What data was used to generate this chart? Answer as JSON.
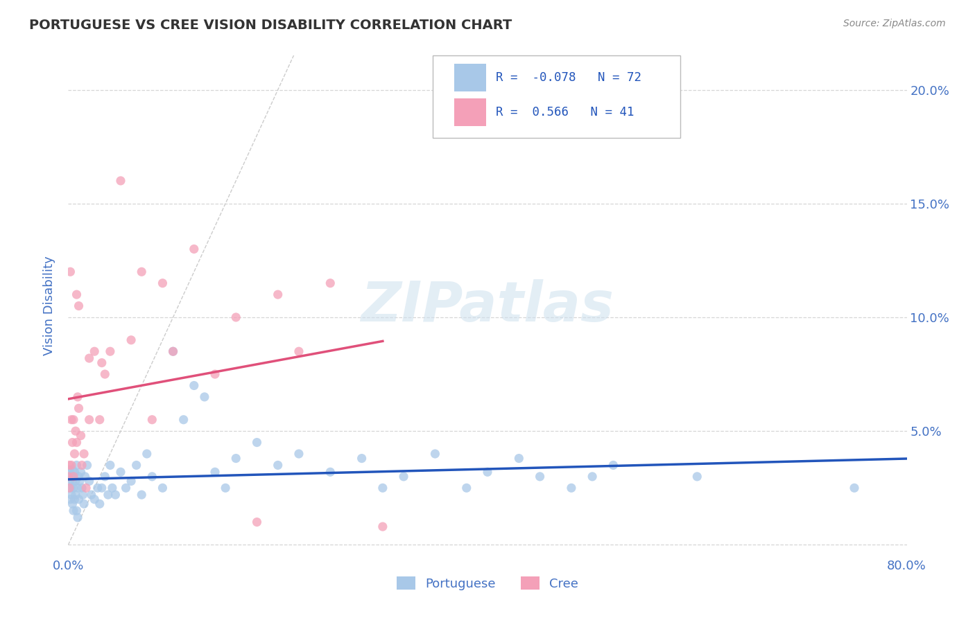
{
  "title": "PORTUGUESE VS CREE VISION DISABILITY CORRELATION CHART",
  "source": "Source: ZipAtlas.com",
  "ylabel": "Vision Disability",
  "watermark": "ZIPatlas",
  "xlim": [
    0.0,
    0.8
  ],
  "ylim": [
    -0.005,
    0.215
  ],
  "portuguese_color": "#a8c8e8",
  "cree_color": "#f4a0b8",
  "portuguese_line_color": "#2255bb",
  "cree_line_color": "#e0507a",
  "r_portuguese": -0.078,
  "n_portuguese": 72,
  "r_cree": 0.566,
  "n_cree": 41,
  "portuguese_x": [
    0.001,
    0.001,
    0.002,
    0.002,
    0.003,
    0.003,
    0.004,
    0.004,
    0.004,
    0.005,
    0.005,
    0.005,
    0.006,
    0.006,
    0.007,
    0.007,
    0.008,
    0.008,
    0.009,
    0.009,
    0.01,
    0.01,
    0.011,
    0.012,
    0.013,
    0.014,
    0.015,
    0.016,
    0.018,
    0.02,
    0.022,
    0.025,
    0.028,
    0.03,
    0.032,
    0.035,
    0.038,
    0.04,
    0.042,
    0.045,
    0.05,
    0.055,
    0.06,
    0.065,
    0.07,
    0.075,
    0.08,
    0.09,
    0.1,
    0.11,
    0.12,
    0.13,
    0.14,
    0.15,
    0.16,
    0.18,
    0.2,
    0.22,
    0.25,
    0.28,
    0.3,
    0.32,
    0.35,
    0.38,
    0.4,
    0.43,
    0.45,
    0.48,
    0.5,
    0.52,
    0.6,
    0.75
  ],
  "portuguese_y": [
    0.033,
    0.028,
    0.025,
    0.02,
    0.03,
    0.022,
    0.033,
    0.018,
    0.028,
    0.03,
    0.025,
    0.015,
    0.032,
    0.02,
    0.028,
    0.022,
    0.035,
    0.015,
    0.025,
    0.012,
    0.03,
    0.02,
    0.028,
    0.032,
    0.025,
    0.022,
    0.018,
    0.03,
    0.035,
    0.028,
    0.022,
    0.02,
    0.025,
    0.018,
    0.025,
    0.03,
    0.022,
    0.035,
    0.025,
    0.022,
    0.032,
    0.025,
    0.028,
    0.035,
    0.022,
    0.04,
    0.03,
    0.025,
    0.085,
    0.055,
    0.07,
    0.065,
    0.032,
    0.025,
    0.038,
    0.045,
    0.035,
    0.04,
    0.032,
    0.038,
    0.025,
    0.03,
    0.04,
    0.025,
    0.032,
    0.038,
    0.03,
    0.025,
    0.03,
    0.035,
    0.03,
    0.025
  ],
  "cree_x": [
    0.0,
    0.001,
    0.001,
    0.002,
    0.003,
    0.003,
    0.004,
    0.005,
    0.005,
    0.006,
    0.007,
    0.008,
    0.008,
    0.009,
    0.01,
    0.01,
    0.012,
    0.013,
    0.015,
    0.017,
    0.02,
    0.02,
    0.025,
    0.03,
    0.032,
    0.035,
    0.04,
    0.05,
    0.06,
    0.07,
    0.08,
    0.09,
    0.1,
    0.12,
    0.14,
    0.16,
    0.18,
    0.2,
    0.22,
    0.25,
    0.3
  ],
  "cree_y": [
    0.03,
    0.035,
    0.025,
    0.12,
    0.055,
    0.035,
    0.045,
    0.055,
    0.03,
    0.04,
    0.05,
    0.11,
    0.045,
    0.065,
    0.105,
    0.06,
    0.048,
    0.035,
    0.04,
    0.025,
    0.055,
    0.082,
    0.085,
    0.055,
    0.08,
    0.075,
    0.085,
    0.16,
    0.09,
    0.12,
    0.055,
    0.115,
    0.085,
    0.13,
    0.075,
    0.1,
    0.01,
    0.11,
    0.085,
    0.115,
    0.008
  ],
  "background_color": "#ffffff",
  "grid_color": "#cccccc",
  "title_color": "#333333",
  "axis_label_color": "#4472c4",
  "tick_label_color": "#4472c4",
  "diagonal_line_color": "#cccccc"
}
